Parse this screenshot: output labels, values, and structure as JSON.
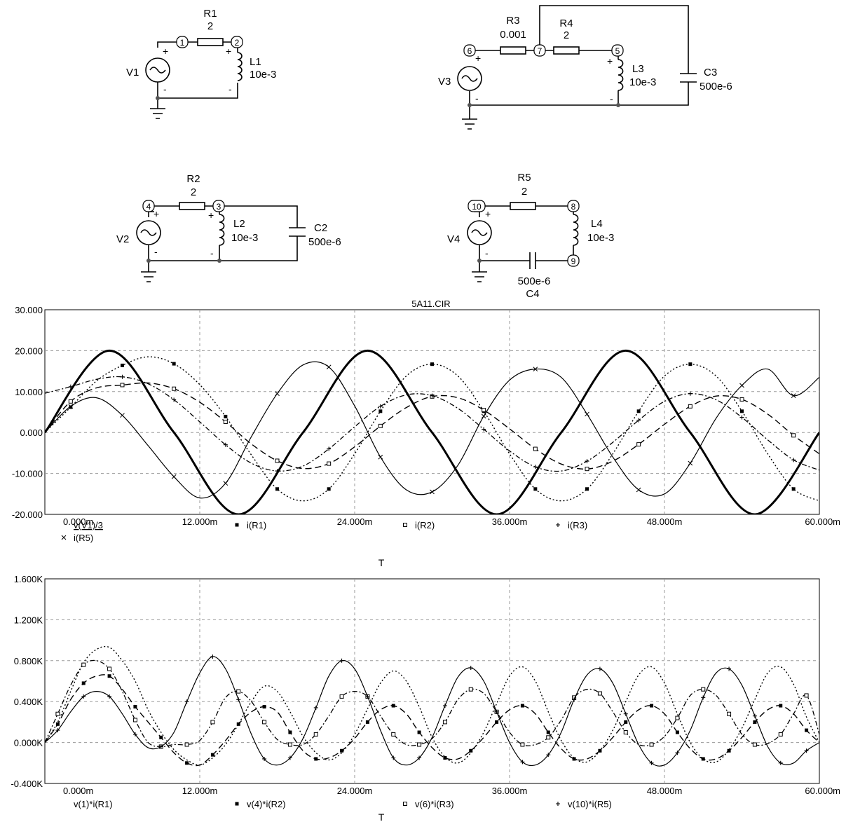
{
  "schematic": {
    "components": {
      "R1": {
        "name": "R1",
        "value": "2"
      },
      "R2": {
        "name": "R2",
        "value": "2"
      },
      "R3": {
        "name": "R3",
        "value": "0.001"
      },
      "R4": {
        "name": "R4",
        "value": "2"
      },
      "R5": {
        "name": "R5",
        "value": "2"
      },
      "L1": {
        "name": "L1",
        "value": "10e-3"
      },
      "L2": {
        "name": "L2",
        "value": "10e-3"
      },
      "L3": {
        "name": "L3",
        "value": "10e-3"
      },
      "L4": {
        "name": "L4",
        "value": "10e-3"
      },
      "C2": {
        "name": "C2",
        "value": "500e-6"
      },
      "C3": {
        "name": "C3",
        "value": "500e-6"
      },
      "C4": {
        "name": "C4",
        "value": "500e-6"
      },
      "V1": {
        "name": "V1"
      },
      "V2": {
        "name": "V2"
      },
      "V3": {
        "name": "V3"
      },
      "V4": {
        "name": "V4"
      }
    },
    "nodes": [
      "1",
      "2",
      "3",
      "4",
      "5",
      "6",
      "7",
      "8",
      "9",
      "10"
    ]
  },
  "chart_data": [
    {
      "type": "line",
      "title": "5A11.CIR",
      "xlabel": "T",
      "xlim": [
        0,
        60
      ],
      "ylim": [
        -20,
        30
      ],
      "x_ticks": [
        "0.000m",
        "12.000m",
        "24.000m",
        "36.000m",
        "48.000m",
        "60.000m"
      ],
      "y_ticks": [
        "30.000",
        "20.000",
        "10.000",
        "0.000",
        "-10.000",
        "-20.000"
      ],
      "grid": true,
      "legend_placement": "below",
      "series": [
        {
          "name": "v(V1)/3",
          "marker": "none",
          "style": "thick",
          "x": [
            0,
            5,
            10,
            15,
            20,
            25,
            30,
            35,
            40,
            45,
            50,
            55,
            60
          ],
          "values": [
            0,
            20,
            0,
            -20,
            0,
            20,
            0,
            -20,
            0,
            20,
            0,
            -20,
            0
          ]
        },
        {
          "name": "i(R1)",
          "marker": "filled-square",
          "style": "dotted",
          "x": [
            0,
            2,
            4,
            6,
            8,
            10,
            12,
            14,
            16,
            18,
            20,
            22,
            24,
            26,
            28,
            30,
            32,
            34,
            36,
            38,
            40,
            42,
            44,
            46,
            48,
            50,
            52,
            54,
            56,
            58,
            60
          ],
          "values": [
            0,
            6.2,
            12.6,
            16.4,
            18.5,
            16.8,
            11.7,
            3.9,
            -5.5,
            -13.8,
            -16.7,
            -13.8,
            -5.2,
            5.2,
            13.8,
            16.7,
            13.8,
            5.2,
            -5.2,
            -13.8,
            -16.7,
            -13.8,
            -5.2,
            5.2,
            13.8,
            16.7,
            13.8,
            5.2,
            -5.2,
            -13.8,
            -16.7
          ]
        },
        {
          "name": "i(R2)",
          "marker": "hollow-square",
          "style": "long-dash",
          "x": [
            0,
            2,
            4,
            6,
            8,
            10,
            12,
            14,
            16,
            18,
            20,
            22,
            24,
            26,
            28,
            30,
            32,
            34,
            36,
            38,
            40,
            42,
            44,
            46,
            48,
            50,
            52,
            54,
            56,
            58,
            60
          ],
          "values": [
            0,
            7.6,
            10.9,
            11.6,
            12.1,
            10.7,
            7.4,
            2.6,
            -2.8,
            -6.9,
            -8.8,
            -7.6,
            -3.5,
            1.6,
            6.1,
            8.8,
            8.5,
            5.5,
            0.9,
            -4.0,
            -7.7,
            -8.9,
            -7.0,
            -2.9,
            2.0,
            6.4,
            8.9,
            8.1,
            4.5,
            -0.7,
            -5.2
          ]
        },
        {
          "name": "i(R3)",
          "marker": "plus",
          "style": "dash-dot",
          "x": [
            0,
            2,
            4,
            6,
            8,
            10,
            12,
            14,
            16,
            18,
            20,
            22,
            24,
            26,
            28,
            30,
            32,
            34,
            36,
            38,
            40,
            42,
            44,
            46,
            48,
            50,
            52,
            54,
            56,
            58,
            60
          ],
          "values": [
            9.6,
            11.2,
            13.0,
            13.6,
            11.9,
            8.0,
            2.6,
            -3.0,
            -7.5,
            -9.4,
            -8.2,
            -4.0,
            1.4,
            6.4,
            9.2,
            9.0,
            5.9,
            0.8,
            -4.5,
            -8.4,
            -9.4,
            -7.0,
            -2.4,
            3.0,
            7.6,
            9.5,
            8.0,
            3.7,
            -1.8,
            -6.7,
            -9.2
          ]
        },
        {
          "name": "i(R5)",
          "marker": "cross",
          "style": "solid",
          "x": [
            0,
            2,
            4,
            6,
            8,
            10,
            12,
            14,
            16,
            18,
            20,
            22,
            24,
            26,
            28,
            30,
            32,
            34,
            36,
            38,
            40,
            42,
            44,
            46,
            48,
            50,
            52,
            54,
            56,
            58,
            60
          ],
          "values": [
            0,
            6.4,
            8.5,
            4.2,
            -3.2,
            -10.8,
            -16.0,
            -12.4,
            -1.0,
            9.5,
            16.5,
            16.0,
            6.5,
            -6.0,
            -14.0,
            -14.5,
            -8.0,
            4.0,
            12.8,
            15.5,
            13.5,
            4.5,
            -6.0,
            -14.0,
            -15.0,
            -7.5,
            3.5,
            11.5,
            15.5,
            9.0,
            13.5
          ]
        }
      ]
    },
    {
      "type": "line",
      "xlabel": "T",
      "xlim": [
        0,
        60
      ],
      "ylim": [
        -0.4,
        1.6
      ],
      "x_ticks": [
        "0.000m",
        "12.000m",
        "24.000m",
        "36.000m",
        "48.000m",
        "60.000m"
      ],
      "y_ticks": [
        "1.600K",
        "1.200K",
        "0.800K",
        "0.400K",
        "0.000K",
        "-0.400K"
      ],
      "grid": true,
      "legend_placement": "below",
      "series": [
        {
          "name": "v(1)*i(R1)",
          "marker": "none",
          "style": "dotted",
          "x": [
            0,
            1,
            2,
            3,
            4,
            5,
            6,
            7,
            8,
            9,
            10,
            11,
            12,
            13,
            14,
            15,
            16,
            17,
            18,
            19,
            20,
            21,
            22,
            23,
            24,
            25,
            26,
            27,
            28,
            29,
            30,
            31,
            32,
            33,
            34,
            35,
            36,
            37,
            38,
            39,
            40,
            41,
            42,
            43,
            44,
            45,
            46,
            47,
            48,
            49,
            50,
            51,
            52,
            53,
            54,
            55,
            56,
            57,
            58,
            59,
            60
          ],
          "values": [
            0,
            0.2,
            0.5,
            0.78,
            0.91,
            0.93,
            0.8,
            0.6,
            0.32,
            0.1,
            -0.07,
            -0.17,
            -0.22,
            -0.15,
            -0.02,
            0.18,
            0.4,
            0.55,
            0.5,
            0.3,
            0.06,
            -0.1,
            -0.17,
            -0.1,
            0.08,
            0.33,
            0.58,
            0.7,
            0.6,
            0.35,
            0.05,
            -0.14,
            -0.2,
            -0.1,
            0.1,
            0.38,
            0.65,
            0.74,
            0.6,
            0.3,
            0.02,
            -0.15,
            -0.19,
            -0.08,
            0.12,
            0.4,
            0.66,
            0.74,
            0.58,
            0.28,
            0.0,
            -0.16,
            -0.19,
            -0.07,
            0.14,
            0.42,
            0.68,
            0.74,
            0.57,
            0.25,
            0.0
          ]
        },
        {
          "name": "v(4)*i(R2)",
          "marker": "filled-square",
          "style": "long-dash",
          "x": [
            0,
            1,
            2,
            3,
            4,
            5,
            6,
            7,
            8,
            9,
            10,
            11,
            12,
            13,
            14,
            15,
            16,
            17,
            18,
            19,
            20,
            21,
            22,
            23,
            24,
            25,
            26,
            27,
            28,
            29,
            30,
            31,
            32,
            33,
            34,
            35,
            36,
            37,
            38,
            39,
            40,
            41,
            42,
            43,
            44,
            45,
            46,
            47,
            48,
            49,
            50,
            51,
            52,
            53,
            54,
            55,
            56,
            57,
            58,
            59,
            60
          ],
          "values": [
            0,
            0.18,
            0.42,
            0.58,
            0.65,
            0.65,
            0.52,
            0.35,
            0.2,
            0.05,
            -0.1,
            -0.2,
            -0.22,
            -0.12,
            0.02,
            0.18,
            0.3,
            0.35,
            0.3,
            0.1,
            -0.08,
            -0.16,
            -0.15,
            -0.08,
            0.04,
            0.2,
            0.32,
            0.36,
            0.28,
            0.1,
            -0.05,
            -0.15,
            -0.16,
            -0.08,
            0.05,
            0.2,
            0.32,
            0.36,
            0.28,
            0.1,
            -0.06,
            -0.16,
            -0.16,
            -0.08,
            0.05,
            0.2,
            0.32,
            0.36,
            0.28,
            0.1,
            -0.06,
            -0.16,
            -0.16,
            -0.08,
            0.05,
            0.2,
            0.32,
            0.36,
            0.28,
            0.12,
            0.0
          ]
        },
        {
          "name": "v(6)*i(R3)",
          "marker": "hollow-square",
          "style": "dash-dot",
          "x": [
            0,
            1,
            2,
            3,
            4,
            5,
            6,
            7,
            8,
            9,
            10,
            11,
            12,
            13,
            14,
            15,
            16,
            17,
            18,
            19,
            20,
            21,
            22,
            23,
            24,
            25,
            26,
            27,
            28,
            29,
            30,
            31,
            32,
            33,
            34,
            35,
            36,
            37,
            38,
            39,
            40,
            41,
            42,
            43,
            44,
            45,
            46,
            47,
            48,
            49,
            50,
            51,
            52,
            53,
            54,
            55,
            56,
            57,
            58,
            59,
            60
          ],
          "values": [
            0,
            0.28,
            0.56,
            0.76,
            0.8,
            0.72,
            0.5,
            0.22,
            0.0,
            -0.04,
            -0.02,
            -0.02,
            0.02,
            0.2,
            0.44,
            0.5,
            0.4,
            0.2,
            0.03,
            -0.02,
            -0.02,
            0.08,
            0.26,
            0.45,
            0.5,
            0.45,
            0.26,
            0.08,
            -0.02,
            -0.02,
            0.04,
            0.2,
            0.42,
            0.52,
            0.48,
            0.3,
            0.1,
            -0.02,
            -0.02,
            0.05,
            0.22,
            0.44,
            0.52,
            0.48,
            0.3,
            0.1,
            -0.02,
            -0.02,
            0.06,
            0.24,
            0.46,
            0.52,
            0.46,
            0.28,
            0.08,
            -0.02,
            -0.01,
            0.08,
            0.28,
            0.46,
            0.08
          ]
        },
        {
          "name": "v(10)*i(R5)",
          "marker": "plus",
          "style": "solid",
          "x": [
            0,
            1,
            2,
            3,
            4,
            5,
            6,
            7,
            8,
            9,
            10,
            11,
            12,
            13,
            14,
            15,
            16,
            17,
            18,
            19,
            20,
            21,
            22,
            23,
            24,
            25,
            26,
            27,
            28,
            29,
            30,
            31,
            32,
            33,
            34,
            35,
            36,
            37,
            38,
            39,
            40,
            41,
            42,
            43,
            44,
            45,
            46,
            47,
            48,
            49,
            50,
            51,
            52,
            53,
            54,
            55,
            56,
            57,
            58,
            59,
            60
          ],
          "values": [
            0,
            0.12,
            0.3,
            0.45,
            0.5,
            0.45,
            0.28,
            0.08,
            -0.05,
            -0.04,
            0.1,
            0.4,
            0.68,
            0.84,
            0.72,
            0.42,
            0.08,
            -0.16,
            -0.22,
            -0.15,
            0.04,
            0.34,
            0.65,
            0.8,
            0.72,
            0.45,
            0.12,
            -0.15,
            -0.22,
            -0.15,
            0.05,
            0.36,
            0.64,
            0.73,
            0.6,
            0.3,
            0.0,
            -0.19,
            -0.22,
            -0.12,
            0.1,
            0.42,
            0.66,
            0.72,
            0.58,
            0.28,
            -0.02,
            -0.2,
            -0.22,
            -0.1,
            0.12,
            0.44,
            0.68,
            0.72,
            0.56,
            0.26,
            -0.04,
            -0.2,
            -0.2,
            -0.08,
            0.0
          ]
        }
      ]
    }
  ]
}
